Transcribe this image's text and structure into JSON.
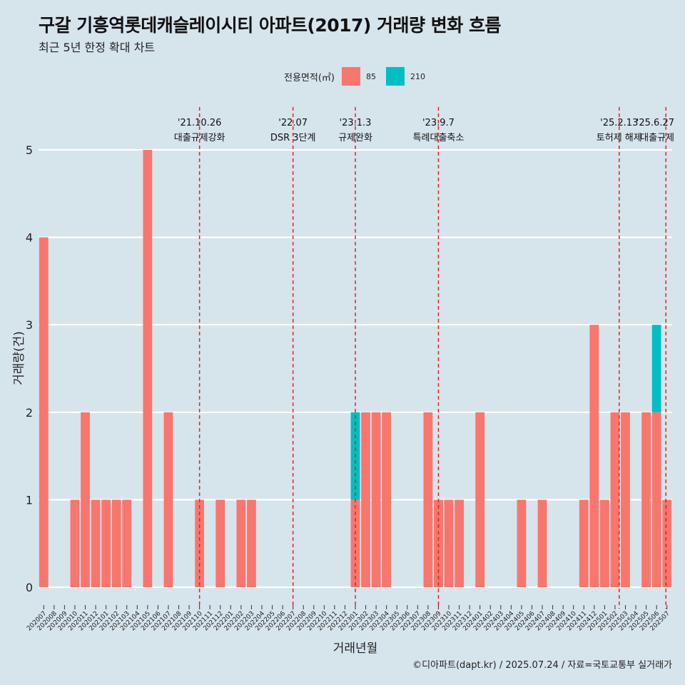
{
  "title": "구갈 기흥역롯데캐슬레이시티 아파트(2017) 거래량 변화 흐름",
  "subtitle": "최근 5년 한정 확대 차트",
  "caption": "©디아파트(dapt.kr) / 2025.07.24 / 자료=국토교통부 실거래가",
  "legend": {
    "title": "전용면적(㎡)",
    "items": [
      {
        "label": "85",
        "color": "#f8766d"
      },
      {
        "label": "210",
        "color": "#00bfc4"
      }
    ]
  },
  "chart_data": {
    "type": "bar",
    "stacked": true,
    "xlabel": "거래년월",
    "ylabel": "거래량(건)",
    "ylim": [
      0,
      5
    ],
    "y_ticks": [
      0,
      1,
      2,
      3,
      4,
      5
    ],
    "grid": true,
    "legend_position": "top",
    "categories": [
      "202007",
      "202008",
      "202009",
      "202010",
      "202011",
      "202012",
      "202101",
      "202102",
      "202103",
      "202104",
      "202105",
      "202106",
      "202107",
      "202108",
      "202109",
      "202110",
      "202111",
      "202112",
      "202201",
      "202202",
      "202203",
      "202204",
      "202205",
      "202206",
      "202207",
      "202208",
      "202209",
      "202210",
      "202211",
      "202212",
      "202301",
      "202302",
      "202303",
      "202304",
      "202305",
      "202306",
      "202307",
      "202308",
      "202309",
      "202310",
      "202311",
      "202312",
      "202401",
      "202402",
      "202403",
      "202404",
      "202405",
      "202406",
      "202407",
      "202408",
      "202409",
      "202410",
      "202411",
      "202412",
      "202501",
      "202502",
      "202503",
      "202504",
      "202505",
      "202506",
      "202507"
    ],
    "series": [
      {
        "name": "85",
        "color": "#f8766d",
        "values": [
          4,
          0,
          0,
          1,
          2,
          1,
          1,
          1,
          1,
          0,
          5,
          0,
          2,
          0,
          0,
          1,
          0,
          1,
          0,
          1,
          1,
          0,
          0,
          0,
          0,
          0,
          0,
          0,
          0,
          0,
          1,
          2,
          2,
          2,
          0,
          0,
          0,
          2,
          1,
          1,
          1,
          0,
          2,
          0,
          0,
          0,
          1,
          0,
          1,
          0,
          0,
          0,
          1,
          3,
          1,
          2,
          2,
          0,
          2,
          2,
          1
        ]
      },
      {
        "name": "210",
        "color": "#00bfc4",
        "values": [
          0,
          0,
          0,
          0,
          0,
          0,
          0,
          0,
          0,
          0,
          0,
          0,
          0,
          0,
          0,
          0,
          0,
          0,
          0,
          0,
          0,
          0,
          0,
          0,
          0,
          0,
          0,
          0,
          0,
          0,
          1,
          0,
          0,
          0,
          0,
          0,
          0,
          0,
          0,
          0,
          0,
          0,
          0,
          0,
          0,
          0,
          0,
          0,
          0,
          0,
          0,
          0,
          0,
          0,
          0,
          0,
          0,
          0,
          0,
          1,
          0
        ]
      }
    ],
    "annotations": [
      {
        "x": 15.0,
        "date": "'21.10.26",
        "label": "대출규제강화"
      },
      {
        "x": 24.0,
        "date": "'22.07",
        "label": "DSR 3단계"
      },
      {
        "x": 30.0,
        "date": "'23.1.3",
        "label": "규제완화"
      },
      {
        "x": 38.0,
        "date": "'23.9.7",
        "label": "특례대출축소"
      },
      {
        "x": 55.4,
        "date": "'25.2.13",
        "label": "토허제 해제"
      },
      {
        "x": 59.9,
        "date": "'25.6.27",
        "label": "대출규제"
      }
    ]
  }
}
